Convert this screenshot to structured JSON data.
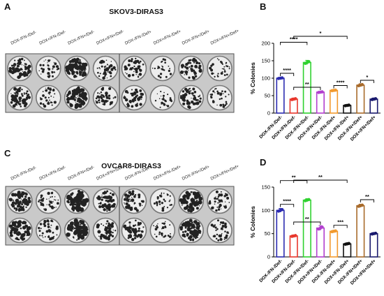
{
  "panels": {
    "a": {
      "letter": "A",
      "title": "SKOV3-DIRAS3"
    },
    "b": {
      "letter": "B"
    },
    "c": {
      "letter": "C",
      "title": "OVCAR8-DIRAS3"
    },
    "d": {
      "letter": "D"
    }
  },
  "plate_headers": [
    "DOX-/FN-/Def-",
    "DOX+/FN-/Def-",
    "DOX-/FN+/Def-",
    "DOX+/FN+/Def-",
    "DOX-/FN-/Def+",
    "DOX+/FN-/Def+",
    "DOX-/FN+/Def+",
    "DOX+/FN+/Def+"
  ],
  "plate_well_density": {
    "skov3": [
      0.55,
      0.25,
      0.75,
      0.35,
      0.35,
      0.12,
      0.45,
      0.2
    ],
    "ovcar8": [
      0.6,
      0.3,
      0.75,
      0.45,
      0.45,
      0.15,
      0.7,
      0.3
    ]
  },
  "chart_data": [
    {
      "type": "bar",
      "panel": "B",
      "ylabel": "% Colonies",
      "ylim": [
        0,
        200
      ],
      "yticks": [
        0,
        50,
        100,
        150,
        200
      ],
      "categories": [
        "DOX-/FN-/Def-",
        "DOX+/FN-/Def-",
        "DOX-/FN+/Def-",
        "DOX+/FN+/Def-",
        "DOX-/FN-/Def+",
        "DOX+/FN-/Def+",
        "DOX-/FN+/Def+",
        "DOX+/FN+/Def+"
      ],
      "values": [
        100,
        40,
        145,
        60,
        65,
        22,
        80,
        40
      ],
      "errors": [
        2,
        3,
        6,
        2,
        2,
        2,
        4,
        3
      ],
      "colors": [
        "#2b2bb0",
        "#e8372c",
        "#2fd12f",
        "#b23fcf",
        "#f29a2e",
        "#111111",
        "#a86a2a",
        "#1a1a6e"
      ],
      "significance": [
        {
          "from": 0,
          "to": 1,
          "label": "****",
          "level": 1
        },
        {
          "from": 0,
          "to": 2,
          "label": "****",
          "level": 2
        },
        {
          "from": 1,
          "to": 3,
          "label": "**",
          "level": 1
        },
        {
          "from": 1,
          "to": 5,
          "label": "*",
          "level": 3
        },
        {
          "from": 4,
          "to": 5,
          "label": "****",
          "level": 1
        },
        {
          "from": 6,
          "to": 7,
          "label": "*",
          "level": 1
        }
      ]
    },
    {
      "type": "bar",
      "panel": "D",
      "ylabel": "% Colonies",
      "ylim": [
        0,
        150
      ],
      "yticks": [
        0,
        50,
        100,
        150
      ],
      "categories": [
        "DOX-/FN-/Def-",
        "DOX+/FN-/Def-",
        "DOX-/FN+/Def-",
        "DOX+/FN+/Def-",
        "DOX-/FN-/Def+",
        "DOX+/FN-/Def+",
        "DOX-/FN+/Def+",
        "DOX+/FN+/Def+"
      ],
      "values": [
        100,
        45,
        122,
        62,
        55,
        28,
        110,
        50
      ],
      "errors": [
        4,
        2,
        3,
        5,
        2,
        2,
        3,
        2
      ],
      "colors": [
        "#2b2bb0",
        "#e8372c",
        "#2fd12f",
        "#b23fcf",
        "#f29a2e",
        "#111111",
        "#a86a2a",
        "#1a1a6e"
      ],
      "significance": [
        {
          "from": 0,
          "to": 1,
          "label": "****",
          "level": 1
        },
        {
          "from": 0,
          "to": 2,
          "label": "**",
          "level": 2
        },
        {
          "from": 1,
          "to": 3,
          "label": "**",
          "level": 1
        },
        {
          "from": 1,
          "to": 5,
          "label": "**",
          "level": 3
        },
        {
          "from": 4,
          "to": 5,
          "label": "***",
          "level": 1
        },
        {
          "from": 6,
          "to": 7,
          "label": "**",
          "level": 1
        }
      ]
    }
  ]
}
